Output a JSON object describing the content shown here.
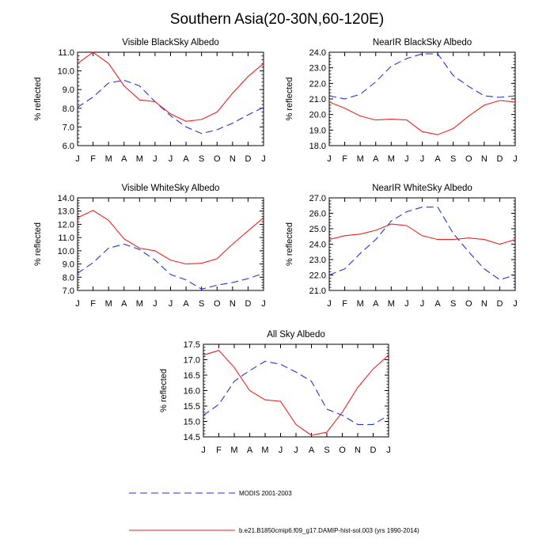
{
  "figure": {
    "title": "Southern Asia(20-30N,60-120E)"
  },
  "chart_data": [
    {
      "type": "line",
      "title": "Visible BlackSky Albedo",
      "ylabel": "% reflected",
      "xlabel": "",
      "categories": [
        "J",
        "F",
        "M",
        "A",
        "M",
        "J",
        "J",
        "A",
        "S",
        "O",
        "N",
        "D",
        "J"
      ],
      "ylim": [
        6.0,
        11.0
      ],
      "yticks": [
        6.0,
        7.0,
        8.0,
        9.0,
        10.0,
        11.0
      ],
      "series": [
        {
          "style": "dashed",
          "color": "#2233dd",
          "values": [
            8.05,
            8.6,
            9.35,
            9.5,
            9.2,
            8.35,
            7.6,
            7.0,
            6.65,
            6.85,
            7.2,
            7.65,
            8.05
          ]
        },
        {
          "style": "solid",
          "color": "#ee2222",
          "values": [
            10.4,
            11.0,
            10.4,
            9.2,
            8.45,
            8.35,
            7.7,
            7.3,
            7.4,
            7.8,
            8.8,
            9.7,
            10.4
          ]
        }
      ]
    },
    {
      "type": "line",
      "title": "NearIR BlackSky Albedo",
      "ylabel": "% reflected",
      "xlabel": "",
      "categories": [
        "J",
        "F",
        "M",
        "A",
        "M",
        "J",
        "J",
        "A",
        "S",
        "O",
        "N",
        "D",
        "J"
      ],
      "ylim": [
        18.0,
        24.0
      ],
      "yticks": [
        18.0,
        19.0,
        20.0,
        21.0,
        22.0,
        23.0,
        24.0
      ],
      "series": [
        {
          "style": "dashed",
          "color": "#2233dd",
          "values": [
            21.2,
            21.0,
            21.3,
            22.1,
            23.1,
            23.6,
            23.9,
            23.9,
            22.5,
            21.8,
            21.2,
            21.1,
            21.2
          ]
        },
        {
          "style": "solid",
          "color": "#ee2222",
          "values": [
            20.8,
            20.4,
            19.9,
            19.65,
            19.7,
            19.65,
            18.9,
            18.7,
            19.1,
            19.9,
            20.6,
            20.9,
            20.8
          ]
        }
      ]
    },
    {
      "type": "line",
      "title": "Visible WhiteSky Albedo",
      "ylabel": "% reflected",
      "xlabel": "",
      "categories": [
        "J",
        "F",
        "M",
        "A",
        "M",
        "J",
        "J",
        "A",
        "S",
        "O",
        "N",
        "D",
        "J"
      ],
      "ylim": [
        7.0,
        14.0
      ],
      "yticks": [
        7.0,
        8.0,
        9.0,
        10.0,
        11.0,
        12.0,
        13.0,
        14.0
      ],
      "series": [
        {
          "style": "dashed",
          "color": "#2233dd",
          "values": [
            8.3,
            9.1,
            10.2,
            10.5,
            10.1,
            9.3,
            8.2,
            7.8,
            7.1,
            7.4,
            7.6,
            7.9,
            8.3
          ]
        },
        {
          "style": "solid",
          "color": "#ee2222",
          "values": [
            12.5,
            13.05,
            12.3,
            10.9,
            10.2,
            10.0,
            9.3,
            9.0,
            9.05,
            9.4,
            10.5,
            11.5,
            12.5
          ]
        }
      ]
    },
    {
      "type": "line",
      "title": "NearIR WhiteSky Albedo",
      "ylabel": "% reflected",
      "xlabel": "",
      "categories": [
        "J",
        "F",
        "M",
        "A",
        "M",
        "J",
        "J",
        "A",
        "S",
        "O",
        "N",
        "D",
        "J"
      ],
      "ylim": [
        21.0,
        27.0
      ],
      "yticks": [
        21.0,
        22.0,
        23.0,
        24.0,
        25.0,
        26.0,
        27.0
      ],
      "series": [
        {
          "style": "dashed",
          "color": "#2233dd",
          "values": [
            22.0,
            22.4,
            23.4,
            24.3,
            25.5,
            26.1,
            26.4,
            26.4,
            24.7,
            23.5,
            22.4,
            21.7,
            22.0
          ]
        },
        {
          "style": "solid",
          "color": "#ee2222",
          "values": [
            24.3,
            24.55,
            24.65,
            24.9,
            25.3,
            25.2,
            24.55,
            24.3,
            24.3,
            24.4,
            24.3,
            24.0,
            24.3
          ]
        }
      ]
    },
    {
      "type": "line",
      "title": "All Sky Albedo",
      "ylabel": "% reflected",
      "xlabel": "",
      "categories": [
        "J",
        "F",
        "M",
        "A",
        "M",
        "J",
        "J",
        "A",
        "S",
        "O",
        "N",
        "D",
        "J"
      ],
      "ylim": [
        14.5,
        17.5
      ],
      "yticks": [
        14.5,
        15.0,
        15.5,
        16.0,
        16.5,
        17.0,
        17.5
      ],
      "series": [
        {
          "style": "dashed",
          "color": "#2233dd",
          "values": [
            15.2,
            15.55,
            16.3,
            16.65,
            16.95,
            16.85,
            16.6,
            16.3,
            15.4,
            15.2,
            14.9,
            14.9,
            15.2
          ]
        },
        {
          "style": "solid",
          "color": "#ee2222",
          "values": [
            17.15,
            17.3,
            16.75,
            16.0,
            15.7,
            15.65,
            14.9,
            14.55,
            14.65,
            15.3,
            16.1,
            16.7,
            17.15
          ]
        }
      ]
    }
  ],
  "legend": [
    {
      "label": "MODIS 2001-2003",
      "style": "dashed",
      "color": "#2233dd"
    },
    {
      "label": "b.e21.B1850cmip6.f09_g17.DAMIP-hist-sol.003 (yrs 1990-2014)",
      "style": "solid",
      "color": "#ee2222"
    }
  ]
}
